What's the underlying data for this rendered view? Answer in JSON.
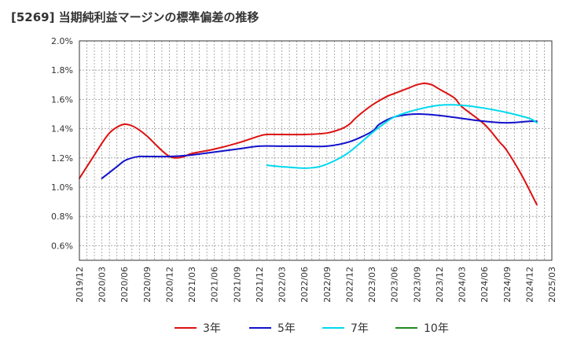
{
  "title": "[5269]  当期純利益マージンの標準偏差の推移",
  "chart_data": {
    "type": "line",
    "title": "[5269]  当期純利益マージンの標準偏差の推移",
    "xlabel": "",
    "ylabel": "",
    "x_ticks": [
      "2019/12",
      "2020/03",
      "2020/06",
      "2020/09",
      "2020/12",
      "2021/03",
      "2021/06",
      "2021/09",
      "2021/12",
      "2022/03",
      "2022/06",
      "2022/09",
      "2022/12",
      "2023/03",
      "2023/06",
      "2023/09",
      "2023/12",
      "2024/03",
      "2024/06",
      "2024/09",
      "2024/12",
      "2025/03"
    ],
    "y_ticks": [
      "0.6%",
      "0.8%",
      "1.0%",
      "1.2%",
      "1.4%",
      "1.6%",
      "1.8%",
      "2.0%"
    ],
    "ylim": [
      0.5,
      2.0
    ],
    "grid": true,
    "legend_position": "bottom",
    "series": [
      {
        "name": "3年",
        "color": "#dd1111",
        "points": [
          [
            "2019/12",
            1.06
          ],
          [
            "2020/01",
            1.14
          ],
          [
            "2020/02",
            1.22
          ],
          [
            "2020/03",
            1.3
          ],
          [
            "2020/04",
            1.37
          ],
          [
            "2020/05",
            1.41
          ],
          [
            "2020/06",
            1.43
          ],
          [
            "2020/07",
            1.42
          ],
          [
            "2020/08",
            1.39
          ],
          [
            "2020/09",
            1.35
          ],
          [
            "2020/10",
            1.3
          ],
          [
            "2020/11",
            1.25
          ],
          [
            "2020/12",
            1.21
          ],
          [
            "2021/01",
            1.2
          ],
          [
            "2021/02",
            1.21
          ],
          [
            "2021/03",
            1.23
          ],
          [
            "2021/06",
            1.26
          ],
          [
            "2021/09",
            1.3
          ],
          [
            "2021/12",
            1.35
          ],
          [
            "2022/01",
            1.36
          ],
          [
            "2022/03",
            1.36
          ],
          [
            "2022/06",
            1.36
          ],
          [
            "2022/09",
            1.37
          ],
          [
            "2022/11",
            1.4
          ],
          [
            "2022/12",
            1.43
          ],
          [
            "2023/01",
            1.48
          ],
          [
            "2023/03",
            1.56
          ],
          [
            "2023/05",
            1.62
          ],
          [
            "2023/06",
            1.64
          ],
          [
            "2023/08",
            1.68
          ],
          [
            "2023/09",
            1.7
          ],
          [
            "2023/10",
            1.71
          ],
          [
            "2023/11",
            1.7
          ],
          [
            "2023/12",
            1.67
          ],
          [
            "2024/02",
            1.61
          ],
          [
            "2024/03",
            1.55
          ],
          [
            "2024/06",
            1.43
          ],
          [
            "2024/08",
            1.31
          ],
          [
            "2024/09",
            1.25
          ],
          [
            "2024/11",
            1.08
          ],
          [
            "2025/01",
            0.88
          ]
        ]
      },
      {
        "name": "5年",
        "color": "#1111cc",
        "points": [
          [
            "2020/03",
            1.06
          ],
          [
            "2020/04",
            1.1
          ],
          [
            "2020/05",
            1.14
          ],
          [
            "2020/06",
            1.18
          ],
          [
            "2020/07",
            1.2
          ],
          [
            "2020/08",
            1.21
          ],
          [
            "2020/09",
            1.21
          ],
          [
            "2020/12",
            1.21
          ],
          [
            "2021/03",
            1.22
          ],
          [
            "2021/06",
            1.24
          ],
          [
            "2021/09",
            1.26
          ],
          [
            "2021/12",
            1.28
          ],
          [
            "2022/03",
            1.28
          ],
          [
            "2022/06",
            1.28
          ],
          [
            "2022/09",
            1.28
          ],
          [
            "2022/12",
            1.31
          ],
          [
            "2023/03",
            1.38
          ],
          [
            "2023/04",
            1.43
          ],
          [
            "2023/06",
            1.48
          ],
          [
            "2023/09",
            1.5
          ],
          [
            "2023/12",
            1.49
          ],
          [
            "2024/03",
            1.47
          ],
          [
            "2024/06",
            1.45
          ],
          [
            "2024/09",
            1.44
          ],
          [
            "2024/12",
            1.45
          ],
          [
            "2025/01",
            1.45
          ]
        ]
      },
      {
        "name": "7年",
        "color": "#00d8ee",
        "points": [
          [
            "2022/01",
            1.15
          ],
          [
            "2022/03",
            1.14
          ],
          [
            "2022/06",
            1.13
          ],
          [
            "2022/08",
            1.14
          ],
          [
            "2022/10",
            1.18
          ],
          [
            "2022/12",
            1.24
          ],
          [
            "2023/03",
            1.37
          ],
          [
            "2023/04",
            1.41
          ],
          [
            "2023/06",
            1.48
          ],
          [
            "2023/09",
            1.53
          ],
          [
            "2023/12",
            1.56
          ],
          [
            "2024/03",
            1.56
          ],
          [
            "2024/06",
            1.54
          ],
          [
            "2024/09",
            1.51
          ],
          [
            "2024/12",
            1.47
          ],
          [
            "2025/01",
            1.44
          ]
        ]
      },
      {
        "name": "10年",
        "color": "#228b22",
        "points": []
      }
    ]
  }
}
